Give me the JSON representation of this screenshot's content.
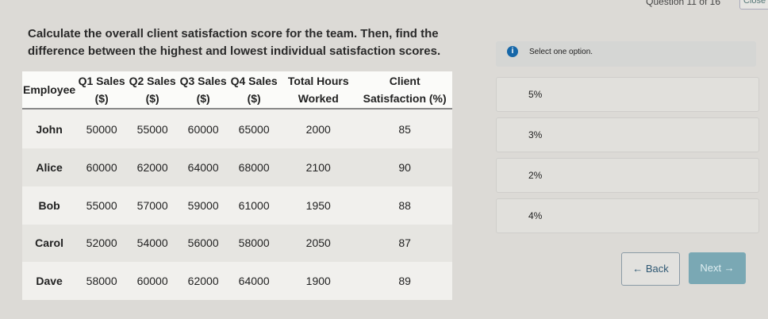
{
  "header": {
    "question_counter": "Question 11 of 16",
    "close_label": "Close"
  },
  "question": "Calculate the overall client satisfaction score for the team. Then, find the difference between the highest and lowest individual satisfaction scores.",
  "table": {
    "headers": [
      "Employee",
      "Q1 Sales ($)",
      "Q2 Sales ($)",
      "Q3 Sales ($)",
      "Q4 Sales ($)",
      "Total Hours Worked",
      "Client Satisfaction (%)"
    ],
    "rows": [
      [
        "John",
        "50000",
        "55000",
        "60000",
        "65000",
        "2000",
        "85"
      ],
      [
        "Alice",
        "60000",
        "62000",
        "64000",
        "68000",
        "2100",
        "90"
      ],
      [
        "Bob",
        "55000",
        "57000",
        "59000",
        "61000",
        "1950",
        "88"
      ],
      [
        "Carol",
        "52000",
        "54000",
        "56000",
        "58000",
        "2050",
        "87"
      ],
      [
        "Dave",
        "58000",
        "60000",
        "62000",
        "64000",
        "1900",
        "89"
      ]
    ]
  },
  "info": {
    "icon": "info-icon",
    "text": "Select one option."
  },
  "options": [
    "5%",
    "3%",
    "2%",
    "4%"
  ],
  "nav": {
    "back_label": "← Back",
    "next_label": "Next →"
  }
}
